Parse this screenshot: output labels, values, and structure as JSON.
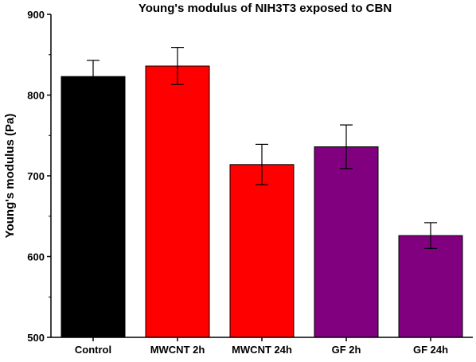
{
  "chart_data": {
    "type": "bar",
    "title": "Young's modulus of NIH3T3 exposed to CBN",
    "xlabel": "",
    "ylabel": "Young's modulus (Pa)",
    "ylim": [
      500,
      900
    ],
    "yticks": [
      500,
      600,
      700,
      800,
      900
    ],
    "categories": [
      "Control",
      "MWCNT 2h",
      "MWCNT 24h",
      "GF 2h",
      "GF 24h"
    ],
    "values": [
      823,
      836,
      714,
      736,
      626
    ],
    "error_upper": [
      20,
      23,
      25,
      27,
      16
    ],
    "error_lower": [
      20,
      23,
      25,
      27,
      16
    ],
    "colors": [
      "#000000",
      "#ff0000",
      "#ff0000",
      "#800080",
      "#800080"
    ],
    "grid": false,
    "legend": "none"
  }
}
